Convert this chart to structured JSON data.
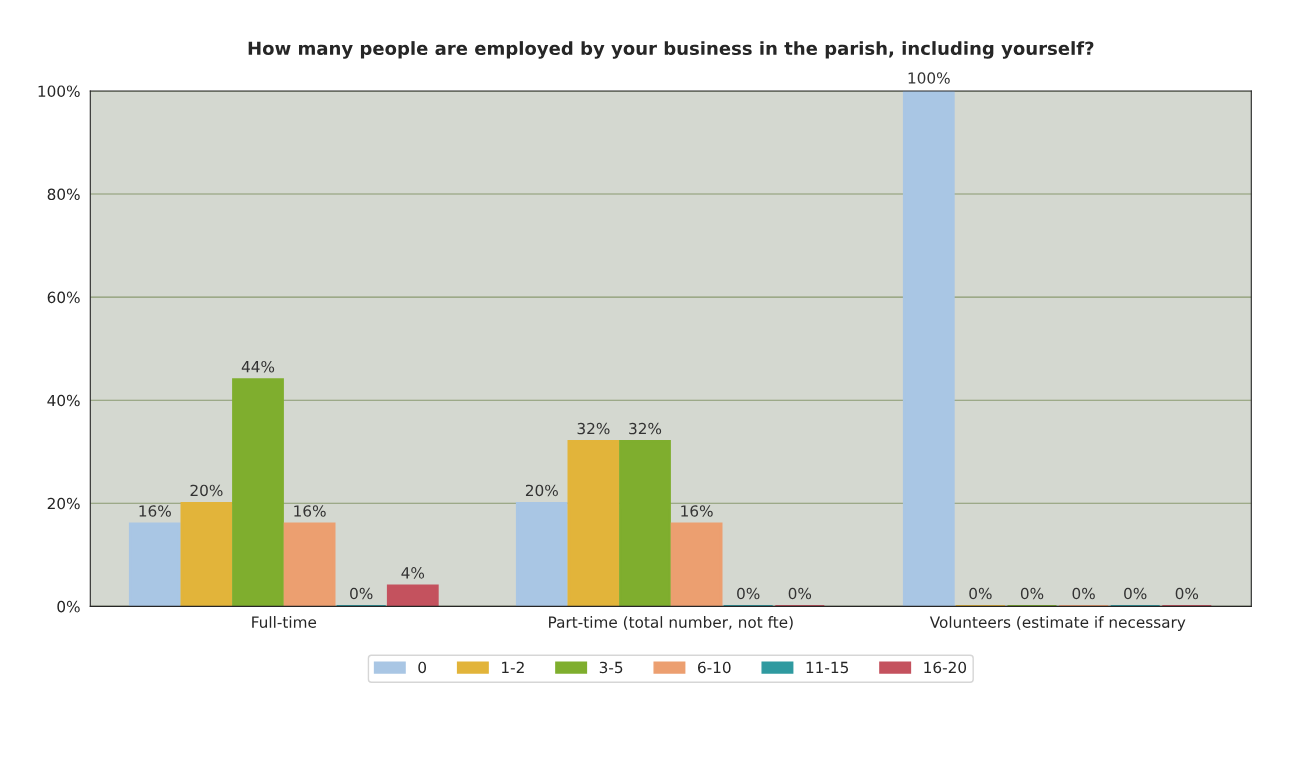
{
  "chart_data": {
    "type": "bar",
    "title": "How many people are employed by your business in the parish, including yourself?",
    "categories": [
      "Full-time",
      "Part-time (total number, not fte)",
      "Volunteers (estimate if necessary"
    ],
    "series": [
      {
        "name": "0",
        "color": "#a9c6e4",
        "values": [
          16,
          20,
          100
        ],
        "value_labels": [
          "16%",
          "20%",
          "100%"
        ]
      },
      {
        "name": "1-2",
        "color": "#e2b43a",
        "values": [
          20,
          32,
          0
        ],
        "value_labels": [
          "20%",
          "32%",
          "0%"
        ]
      },
      {
        "name": "3-5",
        "color": "#7fae2e",
        "values": [
          44,
          32,
          0
        ],
        "value_labels": [
          "44%",
          "32%",
          "0%"
        ]
      },
      {
        "name": "6-10",
        "color": "#ec9f70",
        "values": [
          16,
          16,
          0
        ],
        "value_labels": [
          "16%",
          "16%",
          "0%"
        ]
      },
      {
        "name": "11-15",
        "color": "#2f9aa0",
        "values": [
          0,
          0,
          0
        ],
        "value_labels": [
          "0%",
          "0%",
          "0%"
        ]
      },
      {
        "name": "16-20",
        "color": "#c4525e",
        "values": [
          4,
          0,
          0
        ],
        "value_labels": [
          "4%",
          "0%",
          "0%"
        ]
      }
    ],
    "ylim": [
      0,
      100
    ],
    "yticks": [
      {
        "value": 0,
        "label": "0%"
      },
      {
        "value": 20,
        "label": "20%"
      },
      {
        "value": 40,
        "label": "40%"
      },
      {
        "value": 60,
        "label": "60%"
      },
      {
        "value": 80,
        "label": "80%"
      },
      {
        "value": 100,
        "label": "100%"
      }
    ],
    "grid": "y",
    "legend": "bottom"
  }
}
